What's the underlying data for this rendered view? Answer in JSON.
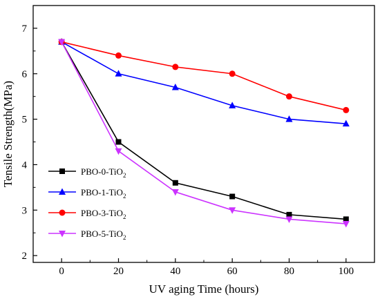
{
  "chart_data": {
    "type": "line",
    "xlabel": "UV aging Time (hours)",
    "ylabel": "Tensile Strength(MPa)",
    "xlim": [
      -10,
      110
    ],
    "ylim": [
      1.85,
      7.5
    ],
    "xticks": [
      0,
      20,
      40,
      60,
      80,
      100
    ],
    "yticks": [
      2,
      3,
      4,
      5,
      6,
      7
    ],
    "grid": false,
    "legend_position": "lower-left",
    "x": [
      0,
      20,
      40,
      60,
      80,
      100
    ],
    "series": [
      {
        "name": "PBO-0-TiO",
        "name_sub": "2",
        "color": "#000000",
        "marker": "square",
        "values": [
          6.7,
          4.5,
          3.6,
          3.3,
          2.9,
          2.8
        ]
      },
      {
        "name": "PBO-1-TiO",
        "name_sub": "2",
        "color": "#0000ff",
        "marker": "triangle-up",
        "values": [
          6.7,
          6.0,
          5.7,
          5.3,
          5.0,
          4.9
        ]
      },
      {
        "name": "PBO-3-TiO",
        "name_sub": "2",
        "color": "#ff0000",
        "marker": "circle",
        "values": [
          6.7,
          6.4,
          6.15,
          6.0,
          5.5,
          5.2
        ]
      },
      {
        "name": "PBO-5-TiO",
        "name_sub": "2",
        "color": "#cc33ff",
        "marker": "triangle-down",
        "values": [
          6.7,
          4.3,
          3.4,
          3.0,
          2.8,
          2.7
        ]
      }
    ]
  }
}
